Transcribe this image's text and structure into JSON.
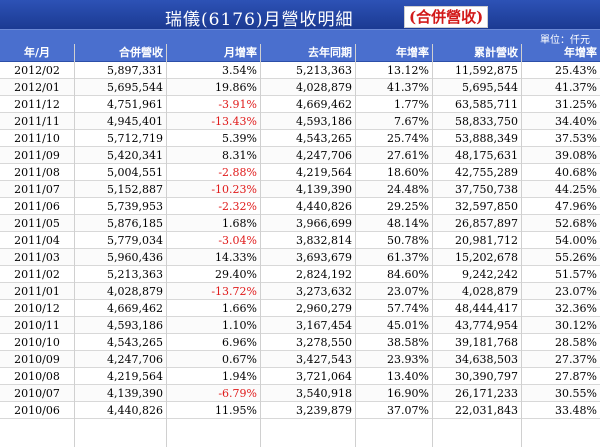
{
  "title": "瑞儀(6176)月營收明細",
  "title_tag": "(合併營收)",
  "unit": "單位：仟元",
  "headers": [
    "年/月",
    "合併營收",
    "月增率",
    "去年同期",
    "年增率",
    "累計營收",
    "年增率"
  ],
  "colors": {
    "title_bg": "#1b3a92",
    "header_bg": "#4a6fce",
    "negative": "#e01b1b",
    "tag": "#d21a1a"
  },
  "rows": [
    [
      "2012/02",
      "5,897,331",
      "3.54%",
      "5,213,363",
      "13.12%",
      "11,592,875",
      "25.43%"
    ],
    [
      "2012/01",
      "5,695,544",
      "19.86%",
      "4,028,879",
      "41.37%",
      "5,695,544",
      "41.37%"
    ],
    [
      "2011/12",
      "4,751,961",
      "-3.91%",
      "4,669,462",
      "1.77%",
      "63,585,711",
      "31.25%"
    ],
    [
      "2011/11",
      "4,945,401",
      "-13.43%",
      "4,593,186",
      "7.67%",
      "58,833,750",
      "34.40%"
    ],
    [
      "2011/10",
      "5,712,719",
      "5.39%",
      "4,543,265",
      "25.74%",
      "53,888,349",
      "37.53%"
    ],
    [
      "2011/09",
      "5,420,341",
      "8.31%",
      "4,247,706",
      "27.61%",
      "48,175,631",
      "39.08%"
    ],
    [
      "2011/08",
      "5,004,551",
      "-2.88%",
      "4,219,564",
      "18.60%",
      "42,755,289",
      "40.68%"
    ],
    [
      "2011/07",
      "5,152,887",
      "-10.23%",
      "4,139,390",
      "24.48%",
      "37,750,738",
      "44.25%"
    ],
    [
      "2011/06",
      "5,739,953",
      "-2.32%",
      "4,440,826",
      "29.25%",
      "32,597,850",
      "47.96%"
    ],
    [
      "2011/05",
      "5,876,185",
      "1.68%",
      "3,966,699",
      "48.14%",
      "26,857,897",
      "52.68%"
    ],
    [
      "2011/04",
      "5,779,034",
      "-3.04%",
      "3,832,814",
      "50.78%",
      "20,981,712",
      "54.00%"
    ],
    [
      "2011/03",
      "5,960,436",
      "14.33%",
      "3,693,679",
      "61.37%",
      "15,202,678",
      "55.26%"
    ],
    [
      "2011/02",
      "5,213,363",
      "29.40%",
      "2,824,192",
      "84.60%",
      "9,242,242",
      "51.57%"
    ],
    [
      "2011/01",
      "4,028,879",
      "-13.72%",
      "3,273,632",
      "23.07%",
      "4,028,879",
      "23.07%"
    ],
    [
      "2010/12",
      "4,669,462",
      "1.66%",
      "2,960,279",
      "57.74%",
      "48,444,417",
      "32.36%"
    ],
    [
      "2010/11",
      "4,593,186",
      "1.10%",
      "3,167,454",
      "45.01%",
      "43,774,954",
      "30.12%"
    ],
    [
      "2010/10",
      "4,543,265",
      "6.96%",
      "3,278,550",
      "38.58%",
      "39,181,768",
      "28.58%"
    ],
    [
      "2010/09",
      "4,247,706",
      "0.67%",
      "3,427,543",
      "23.93%",
      "34,638,503",
      "27.37%"
    ],
    [
      "2010/08",
      "4,219,564",
      "1.94%",
      "3,721,064",
      "13.40%",
      "30,390,797",
      "27.87%"
    ],
    [
      "2010/07",
      "4,139,390",
      "-6.79%",
      "3,540,918",
      "16.90%",
      "26,171,233",
      "30.55%"
    ],
    [
      "2010/06",
      "4,440,826",
      "11.95%",
      "3,239,879",
      "37.07%",
      "22,031,843",
      "33.48%"
    ]
  ]
}
